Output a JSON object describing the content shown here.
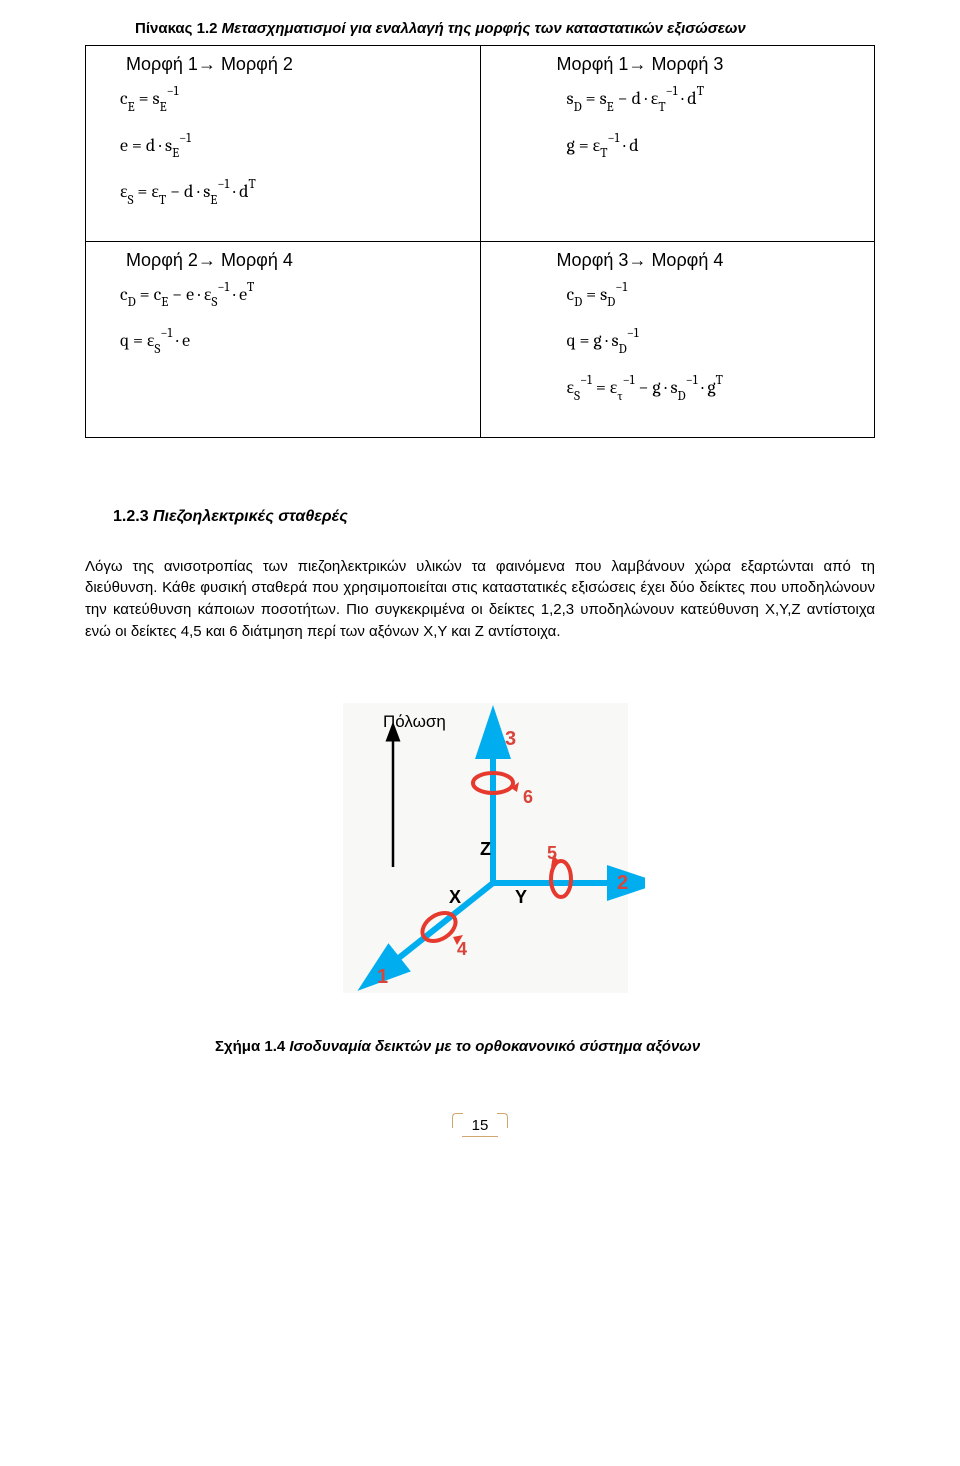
{
  "table": {
    "caption_prefix": "Πίνακας 1.2",
    "caption_rest": " Μετασχηματισμοί για εναλλαγή της μορφής των καταστατικών εξισώσεων",
    "cells": {
      "c11_title": "Μορφή 1→ Μορφή 2",
      "c11_eq1": "c<sub>E</sub> = s<sub>E</sub><sup>−1</sup>",
      "c11_eq2": "e = d · s<sub>E</sub><sup>−1</sup>",
      "c11_eq3": "ε<sub>S</sub> = ε<sub>T</sub> − d · s<sub>E</sub><sup>−1</sup> · d<sup>T</sup>",
      "c12_title": "Μορφή 1→ Μορφή 3",
      "c12_eq1": "s<sub>D</sub> = s<sub>E</sub> − d · ε<sub>T</sub><sup>−1</sup> · d<sup>T</sup>",
      "c12_eq2": "g = ε<sub>T</sub><sup>−1</sup> · d",
      "c21_title": "Μορφή 2→ Μορφή 4",
      "c21_eq1": "c<sub>D</sub> = c<sub>E</sub> − e · ε<sub>S</sub><sup>−1</sup> · e<sup>T</sup>",
      "c21_eq2": "q = ε<sub>S</sub><sup>−1</sup> · e",
      "c22_title": "Μορφή 3→ Μορφή 4",
      "c22_eq1": "c<sub>D</sub> = s<sub>D</sub><sup>−1</sup>",
      "c22_eq2": "q = g · s<sub>D</sub><sup>−1</sup>",
      "c22_eq3": "ε<sub>S</sub><sup>−1</sup> = ε<sub>τ</sub><sup>−1</sup> − g · s<sub>D</sub><sup>−1</sup> · g<sup>T</sup>"
    }
  },
  "section": {
    "num": "1.2.3",
    "title": " Πιεζοηλεκτρικές σταθερές"
  },
  "paragraph": "Λόγω της ανισοτροπίας  των πιεζοηλεκτρικών υλικών τα φαινόμενα που λαμβάνουν χώρα εξαρτώνται από τη διεύθυνση. Κάθε φυσική σταθερά που χρησιμοποιείται στις καταστατικές εξισώσεις έχει δύο δείκτες  που υποδηλώνουν την κατεύθυνση κάποιων ποσοτήτων. Πιο συγκεκριμένα οι δείκτες  1,2,3 υποδηλώνουν κατεύθυνση Χ,Υ,Ζ αντίστοιχα ενώ οι δείκτες 4,5 και 6 διάτμηση περί των αξόνων Χ,Υ και Ζ αντίστοιχα.",
  "figure": {
    "label_polosi": "Πόλωση",
    "labels": {
      "x": "X",
      "y": "Y",
      "z": "Z",
      "n1": "1",
      "n2": "2",
      "n3": "3",
      "n4": "4",
      "n5": "5",
      "n6": "6"
    },
    "colors": {
      "axis": "#00aef0",
      "arrow_red": "#e63a2e",
      "index_red": "#d9453a",
      "black": "#000000",
      "gray_bg": "#f5f5f3"
    },
    "caption_prefix": "Σχήμα 1.4",
    "caption_rest": " Ισοδυναμία δεικτών με το ορθοκανονικό σύστημα αξόνων"
  },
  "page_number": "15"
}
